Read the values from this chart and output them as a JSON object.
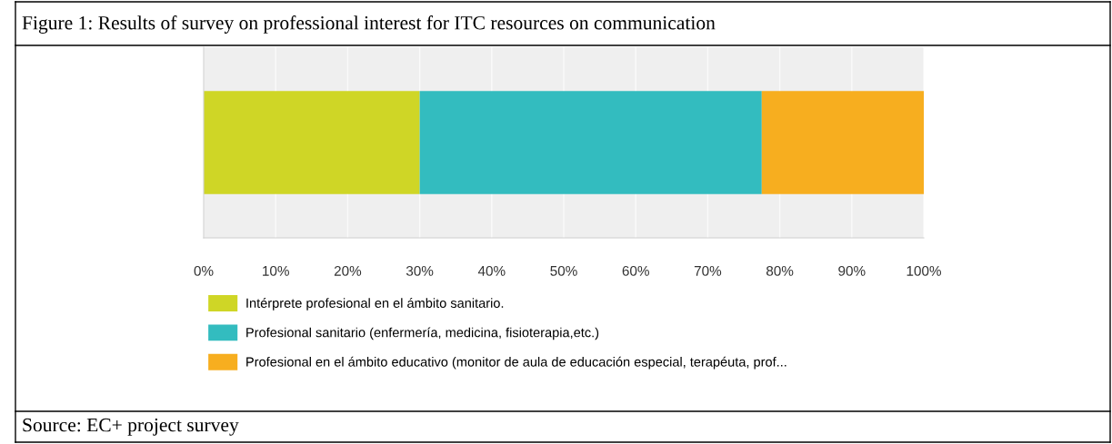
{
  "chart_data": {
    "type": "bar",
    "orientation": "horizontal",
    "stacked": true,
    "title": "Figure 1: Results of survey on professional interest for ITC resources on communication",
    "categories": [
      null
    ],
    "series": [
      {
        "name": "Intérprete profesional en el ámbito sanitario.",
        "color": "#cfd626",
        "values": [
          30
        ]
      },
      {
        "name": "Profesional sanitario (enfermería, medicina, fisioterapia,etc.)",
        "color": "#33bcbf",
        "values": [
          47.5
        ]
      },
      {
        "name": "Profesional en el ámbito educativo (monitor de aula de educación especial, terapéuta, prof...",
        "color": "#f7ae1f",
        "values": [
          22.5
        ]
      }
    ],
    "xlim": [
      0,
      100
    ],
    "xticks": [
      {
        "value": 0,
        "label": "0%"
      },
      {
        "value": 10,
        "label": "10%"
      },
      {
        "value": 20,
        "label": "20%"
      },
      {
        "value": 30,
        "label": "30%"
      },
      {
        "value": 40,
        "label": "40%"
      },
      {
        "value": 50,
        "label": "50%"
      },
      {
        "value": 60,
        "label": "60%"
      },
      {
        "value": 70,
        "label": "70%"
      },
      {
        "value": 80,
        "label": "80%"
      },
      {
        "value": 90,
        "label": "90%"
      },
      {
        "value": 100,
        "label": "100%"
      }
    ],
    "grid": "x",
    "legend": "bottom left",
    "annotations": [
      "Source: EC+ project survey"
    ]
  }
}
